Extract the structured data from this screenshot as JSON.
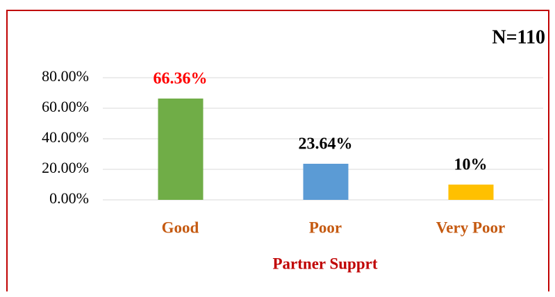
{
  "chart_data": {
    "type": "bar",
    "annotation": "N=110",
    "x_label": "Partner Supprt",
    "categories": [
      "Good",
      "Poor",
      "Very Poor"
    ],
    "values": [
      66.36,
      23.64,
      10
    ],
    "value_labels": [
      "66.36%",
      "23.64%",
      "10%"
    ],
    "colors": [
      "#70ad47",
      "#5b9bd5",
      "#ffc000"
    ],
    "value_label_colors": [
      "#ff0000",
      "#000000",
      "#000000"
    ],
    "ylim": [
      0,
      80
    ],
    "yticks": [
      {
        "value": 0,
        "label": "0.00%"
      },
      {
        "value": 20,
        "label": "20.00%"
      },
      {
        "value": 40,
        "label": "40.00%"
      },
      {
        "value": 60,
        "label": "60.00%"
      },
      {
        "value": 80,
        "label": "80.00%"
      }
    ],
    "grid": true
  }
}
